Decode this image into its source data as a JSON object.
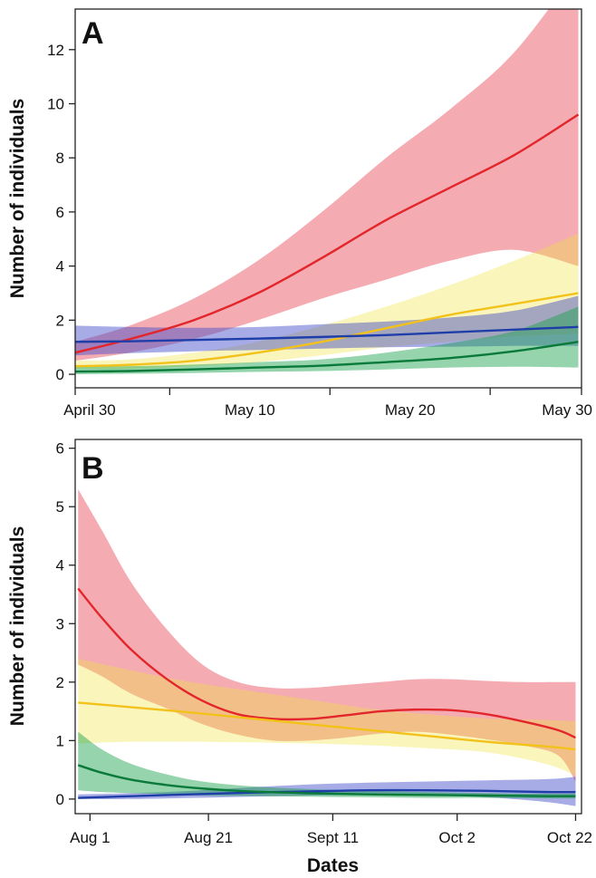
{
  "colors": {
    "red": "#e3262b",
    "yellow": "#f2c21b",
    "blue": "#1f3ea8",
    "green": "#0a7a3a",
    "band_red": "rgba(230,70,85,0.45)",
    "band_yellow": "rgba(240,225,60,0.35)",
    "band_blue": "rgba(60,70,200,0.45)",
    "band_green": "rgba(20,160,70,0.45)"
  },
  "chart_data": [
    {
      "type": "line",
      "panel_label": "A",
      "ylabel": "Number of individuals",
      "xlabel": "",
      "x_tick_labels": [
        "April 30",
        "May 10",
        "May 20",
        "May 30"
      ],
      "x_tick_positions": [
        29.5,
        39.5,
        49.5,
        59.5
      ],
      "x_range": [
        28.6,
        60.2
      ],
      "x_major_ticks": [
        28.6,
        34.5,
        44.5,
        54.5,
        60.2
      ],
      "ylim": [
        -0.5,
        13.5
      ],
      "y_ticks": [
        0,
        2,
        4,
        6,
        8,
        10,
        12
      ],
      "grid": false,
      "legend": "none",
      "series": [
        {
          "color_key": "red",
          "x": [
            28.6,
            32,
            36,
            40,
            44,
            48,
            52,
            56,
            60
          ],
          "values": [
            0.8,
            1.3,
            2.0,
            3.0,
            4.3,
            5.7,
            6.9,
            8.1,
            9.6
          ],
          "lower": [
            0.5,
            0.8,
            1.3,
            2.0,
            2.8,
            3.5,
            4.2,
            4.6,
            4.0
          ],
          "upper": [
            1.2,
            1.8,
            2.8,
            4.2,
            6.0,
            8.0,
            9.8,
            11.9,
            15.0
          ]
        },
        {
          "color_key": "yellow",
          "x": [
            28.6,
            32,
            36,
            40,
            44,
            48,
            52,
            56,
            60
          ],
          "values": [
            0.3,
            0.35,
            0.5,
            0.8,
            1.2,
            1.7,
            2.2,
            2.6,
            3.0
          ],
          "lower": [
            0.2,
            0.2,
            0.3,
            0.45,
            0.7,
            1.0,
            1.2,
            1.4,
            1.5
          ],
          "upper": [
            0.5,
            0.55,
            0.8,
            1.2,
            1.8,
            2.5,
            3.3,
            4.2,
            5.2
          ]
        },
        {
          "color_key": "blue",
          "x": [
            28.6,
            32,
            36,
            40,
            44,
            48,
            52,
            56,
            60
          ],
          "values": [
            1.2,
            1.22,
            1.27,
            1.32,
            1.38,
            1.45,
            1.55,
            1.65,
            1.75
          ],
          "lower": [
            0.7,
            0.78,
            0.85,
            0.9,
            0.95,
            1.0,
            1.02,
            1.05,
            1.05
          ],
          "upper": [
            1.8,
            1.75,
            1.72,
            1.75,
            1.85,
            1.95,
            2.1,
            2.35,
            2.9
          ]
        },
        {
          "color_key": "green",
          "x": [
            28.6,
            32,
            36,
            40,
            44,
            48,
            52,
            56,
            60
          ],
          "values": [
            0.1,
            0.12,
            0.18,
            0.25,
            0.32,
            0.45,
            0.6,
            0.85,
            1.2
          ],
          "lower": [
            0.0,
            0.02,
            0.05,
            0.09,
            0.12,
            0.18,
            0.25,
            0.28,
            0.25
          ],
          "upper": [
            0.3,
            0.3,
            0.36,
            0.45,
            0.55,
            0.8,
            1.15,
            1.6,
            2.5
          ]
        }
      ]
    },
    {
      "type": "line",
      "panel_label": "B",
      "ylabel": "Number of individuals",
      "xlabel": "Dates",
      "x_tick_labels": [
        "Aug 1",
        "Aug 21",
        "Sept 11",
        "Oct 2",
        "Oct 22"
      ],
      "x_tick_positions": [
        213,
        233,
        254,
        275,
        295
      ],
      "x_range": [
        210.5,
        296
      ],
      "ylim": [
        -0.25,
        6.15
      ],
      "y_ticks": [
        0,
        1,
        2,
        3,
        4,
        5,
        6
      ],
      "grid": false,
      "legend": "none",
      "series": [
        {
          "color_key": "red",
          "x": [
            211,
            215,
            220,
            226,
            232,
            238,
            244,
            250,
            256,
            262,
            268,
            274,
            280,
            286,
            292,
            295
          ],
          "values": [
            3.6,
            3.1,
            2.55,
            2.05,
            1.68,
            1.45,
            1.37,
            1.37,
            1.43,
            1.5,
            1.53,
            1.52,
            1.45,
            1.33,
            1.18,
            1.05
          ],
          "lower": [
            2.3,
            2.1,
            1.8,
            1.55,
            1.28,
            1.1,
            1.0,
            1.0,
            1.05,
            1.12,
            1.15,
            1.1,
            1.02,
            0.92,
            0.75,
            0.3
          ],
          "upper": [
            5.3,
            4.6,
            3.7,
            2.9,
            2.3,
            2.0,
            1.9,
            1.9,
            1.95,
            2.0,
            2.05,
            2.05,
            2.02,
            2.0,
            2.0,
            2.0
          ]
        },
        {
          "color_key": "yellow",
          "x": [
            211,
            220,
            230,
            240,
            250,
            260,
            270,
            280,
            290,
            295
          ],
          "values": [
            1.65,
            1.57,
            1.48,
            1.38,
            1.28,
            1.18,
            1.08,
            0.98,
            0.9,
            0.85
          ],
          "lower": [
            0.95,
            0.98,
            0.98,
            0.97,
            0.95,
            0.92,
            0.87,
            0.8,
            0.6,
            0.4
          ],
          "upper": [
            2.4,
            2.2,
            2.0,
            1.85,
            1.7,
            1.55,
            1.45,
            1.38,
            1.35,
            1.33
          ]
        },
        {
          "color_key": "blue",
          "x": [
            211,
            220,
            230,
            240,
            250,
            260,
            270,
            280,
            290,
            295
          ],
          "values": [
            0.02,
            0.05,
            0.08,
            0.11,
            0.13,
            0.15,
            0.15,
            0.14,
            0.12,
            0.12
          ],
          "lower": [
            0.0,
            0.0,
            0.02,
            0.04,
            0.06,
            0.07,
            0.06,
            0.03,
            -0.05,
            -0.12
          ],
          "upper": [
            0.08,
            0.1,
            0.14,
            0.2,
            0.25,
            0.28,
            0.3,
            0.32,
            0.34,
            0.38
          ]
        },
        {
          "color_key": "green",
          "x": [
            211,
            215,
            220,
            226,
            232,
            240,
            250,
            260,
            270,
            280,
            290,
            295
          ],
          "values": [
            0.58,
            0.45,
            0.33,
            0.24,
            0.18,
            0.13,
            0.1,
            0.08,
            0.07,
            0.06,
            0.05,
            0.05
          ],
          "lower": [
            0.15,
            0.12,
            0.1,
            0.08,
            0.06,
            0.05,
            0.04,
            0.03,
            0.02,
            0.02,
            0.01,
            0.01
          ],
          "upper": [
            1.15,
            0.85,
            0.6,
            0.42,
            0.3,
            0.22,
            0.17,
            0.14,
            0.12,
            0.1,
            0.09,
            0.09
          ]
        }
      ]
    }
  ]
}
